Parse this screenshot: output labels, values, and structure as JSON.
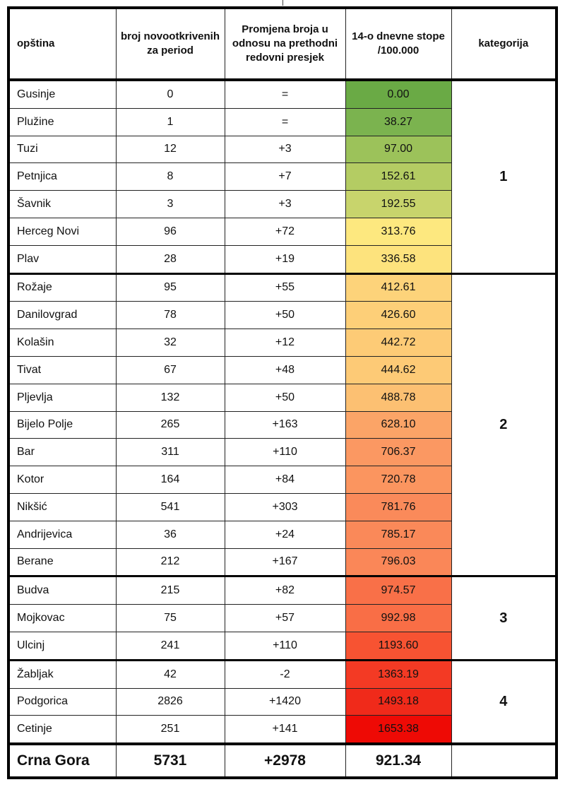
{
  "header": {
    "municipality": "opština",
    "new_cases": "broj novootkrivenih za period",
    "change": "Promjena broja u odnosu na prethodni redovni presjek",
    "rate": "14-o dnevne stope /100.000",
    "category": "kategorija"
  },
  "groups": [
    {
      "category": "1",
      "rows": [
        {
          "name": "Gusinje",
          "cases": "0",
          "change": "=",
          "rate": "0.00",
          "color": "#6aaa45"
        },
        {
          "name": "Plužine",
          "cases": "1",
          "change": "=",
          "rate": "38.27",
          "color": "#7bb34f"
        },
        {
          "name": "Tuzi",
          "cases": "12",
          "change": "+3",
          "rate": "97.00",
          "color": "#9cc25a"
        },
        {
          "name": "Petnjica",
          "cases": "8",
          "change": "+7",
          "rate": "152.61",
          "color": "#b4cc63"
        },
        {
          "name": "Šavnik",
          "cases": "3",
          "change": "+3",
          "rate": "192.55",
          "color": "#c8d46c"
        },
        {
          "name": "Herceg Novi",
          "cases": "96",
          "change": "+72",
          "rate": "313.76",
          "color": "#fde87f"
        },
        {
          "name": "Plav",
          "cases": "28",
          "change": "+19",
          "rate": "336.58",
          "color": "#fde37d"
        }
      ]
    },
    {
      "category": "2",
      "rows": [
        {
          "name": "Rožaje",
          "cases": "95",
          "change": "+55",
          "rate": "412.61",
          "color": "#fdd37a"
        },
        {
          "name": "Danilovgrad",
          "cases": "78",
          "change": "+50",
          "rate": "426.60",
          "color": "#fdcf78"
        },
        {
          "name": "Kolašin",
          "cases": "32",
          "change": "+12",
          "rate": "442.72",
          "color": "#fdcb76"
        },
        {
          "name": "Tivat",
          "cases": "67",
          "change": "+48",
          "rate": "444.62",
          "color": "#fdca76"
        },
        {
          "name": "Pljevlja",
          "cases": "132",
          "change": "+50",
          "rate": "488.78",
          "color": "#fcc072"
        },
        {
          "name": "Bijelo Polje",
          "cases": "265",
          "change": "+163",
          "rate": "628.10",
          "color": "#fba467"
        },
        {
          "name": "Bar",
          "cases": "311",
          "change": "+110",
          "rate": "706.37",
          "color": "#fb9862"
        },
        {
          "name": "Kotor",
          "cases": "164",
          "change": "+84",
          "rate": "720.78",
          "color": "#fb955f"
        },
        {
          "name": "Nikšić",
          "cases": "541",
          "change": "+303",
          "rate": "781.76",
          "color": "#fa8a5a"
        },
        {
          "name": "Andrijevica",
          "cases": "36",
          "change": "+24",
          "rate": "785.17",
          "color": "#fa8959"
        },
        {
          "name": "Berane",
          "cases": "212",
          "change": "+167",
          "rate": "796.03",
          "color": "#fa8758"
        }
      ]
    },
    {
      "category": "3",
      "rows": [
        {
          "name": "Budva",
          "cases": "215",
          "change": "+82",
          "rate": "974.57",
          "color": "#f97048"
        },
        {
          "name": "Mojkovac",
          "cases": "75",
          "change": "+57",
          "rate": "992.98",
          "color": "#f96e46"
        },
        {
          "name": "Ulcinj",
          "cases": "241",
          "change": "+110",
          "rate": "1193.60",
          "color": "#f75332"
        }
      ]
    },
    {
      "category": "4",
      "rows": [
        {
          "name": "Žabljak",
          "cases": "42",
          "change": "-2",
          "rate": "1363.19",
          "color": "#f33a24"
        },
        {
          "name": "Podgorica",
          "cases": "2826",
          "change": "+1420",
          "rate": "1493.18",
          "color": "#f02a1a"
        },
        {
          "name": "Cetinje",
          "cases": "251",
          "change": "+141",
          "rate": "1653.38",
          "color": "#ee0a05"
        }
      ]
    }
  ],
  "total": {
    "name": "Crna Gora",
    "cases": "5731",
    "change": "+2978",
    "rate": "921.34"
  }
}
